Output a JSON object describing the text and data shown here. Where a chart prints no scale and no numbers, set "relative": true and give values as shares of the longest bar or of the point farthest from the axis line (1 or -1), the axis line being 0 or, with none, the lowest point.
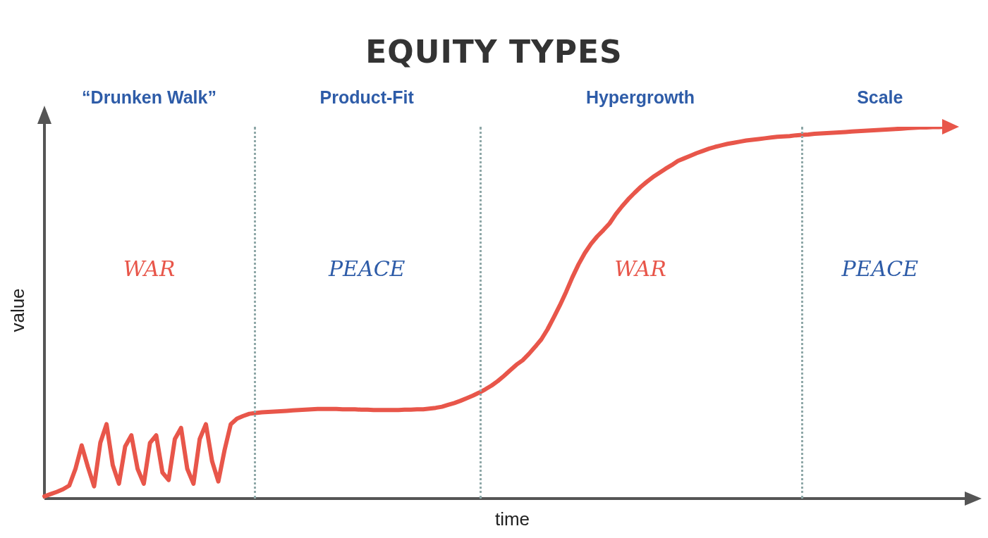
{
  "chart_data": {
    "type": "line",
    "title": "EQUITY TYPES",
    "xlabel": "time",
    "ylabel": "value",
    "relative": true,
    "grid": false,
    "legend": false,
    "marker": "none",
    "line_style": "solid",
    "categories": [
      null,
      null,
      null,
      null,
      null,
      null,
      null,
      null,
      null,
      null,
      null,
      null,
      null,
      null,
      null,
      null,
      null,
      null,
      null,
      null,
      null,
      null,
      null,
      null,
      null,
      null,
      null,
      null,
      null,
      null,
      null,
      null,
      null,
      null,
      null,
      null,
      null,
      null,
      null,
      null,
      null,
      null,
      null,
      null,
      null,
      null,
      null,
      null,
      null,
      null,
      null,
      null,
      null,
      null,
      null,
      null,
      null,
      null,
      null,
      null,
      null,
      null,
      null,
      null,
      null,
      null,
      null,
      null,
      null,
      null,
      null,
      null,
      null,
      null,
      null,
      null,
      null,
      null,
      null,
      null,
      null,
      null,
      null,
      null,
      null,
      null,
      null,
      null,
      null,
      null,
      null,
      null,
      null,
      null,
      null,
      null,
      null,
      null,
      null,
      null,
      null,
      null,
      null,
      null,
      null,
      null,
      null,
      null,
      null,
      null,
      null,
      null,
      null,
      null,
      null,
      null,
      null,
      null,
      null,
      null,
      null,
      null,
      null,
      null,
      null,
      null,
      null,
      null,
      null,
      null,
      null,
      null,
      null,
      null,
      null,
      null,
      null,
      null,
      null,
      null,
      null,
      null,
      null,
      null,
      null,
      null
    ],
    "series": [
      {
        "color": "#e8564a",
        "values": [
          0.006,
          0.012,
          0.018,
          0.025,
          0.035,
          0.08,
          0.143,
          0.085,
          0.033,
          0.15,
          0.2,
          0.09,
          0.04,
          0.14,
          0.17,
          0.08,
          0.04,
          0.15,
          0.17,
          0.07,
          0.05,
          0.16,
          0.19,
          0.08,
          0.04,
          0.16,
          0.2,
          0.1,
          0.046,
          0.13,
          0.2,
          0.215,
          0.222,
          0.228,
          0.23,
          0.232,
          0.233,
          0.234,
          0.235,
          0.236,
          0.237,
          0.238,
          0.239,
          0.24,
          0.241,
          0.241,
          0.241,
          0.241,
          0.24,
          0.24,
          0.24,
          0.239,
          0.239,
          0.238,
          0.238,
          0.238,
          0.238,
          0.238,
          0.239,
          0.239,
          0.24,
          0.24,
          0.242,
          0.244,
          0.247,
          0.252,
          0.257,
          0.263,
          0.27,
          0.277,
          0.285,
          0.294,
          0.304,
          0.316,
          0.33,
          0.345,
          0.36,
          0.372,
          0.389,
          0.408,
          0.428,
          0.455,
          0.487,
          0.52,
          0.556,
          0.595,
          0.63,
          0.66,
          0.685,
          0.705,
          0.722,
          0.74,
          0.765,
          0.786,
          0.805,
          0.822,
          0.838,
          0.852,
          0.865,
          0.876,
          0.887,
          0.897,
          0.908,
          0.915,
          0.922,
          0.929,
          0.935,
          0.941,
          0.946,
          0.95,
          0.954,
          0.957,
          0.96,
          0.963,
          0.965,
          0.967,
          0.969,
          0.971,
          0.973,
          0.974,
          0.975,
          0.977,
          0.978,
          0.979,
          0.981,
          0.982,
          0.983,
          0.984,
          0.985,
          0.986,
          0.987,
          0.988,
          0.989,
          0.99,
          0.991,
          0.992,
          0.993,
          0.994,
          0.995,
          0.996,
          0.997,
          0.998,
          0.998,
          0.999,
          0.999,
          1
        ]
      }
    ],
    "annotations": [
      "“Drunken Walk”",
      "Product-Fit",
      "Hypergrowth",
      "Scale",
      "WAR",
      "PEACE",
      "WAR",
      "PEACE"
    ]
  }
}
